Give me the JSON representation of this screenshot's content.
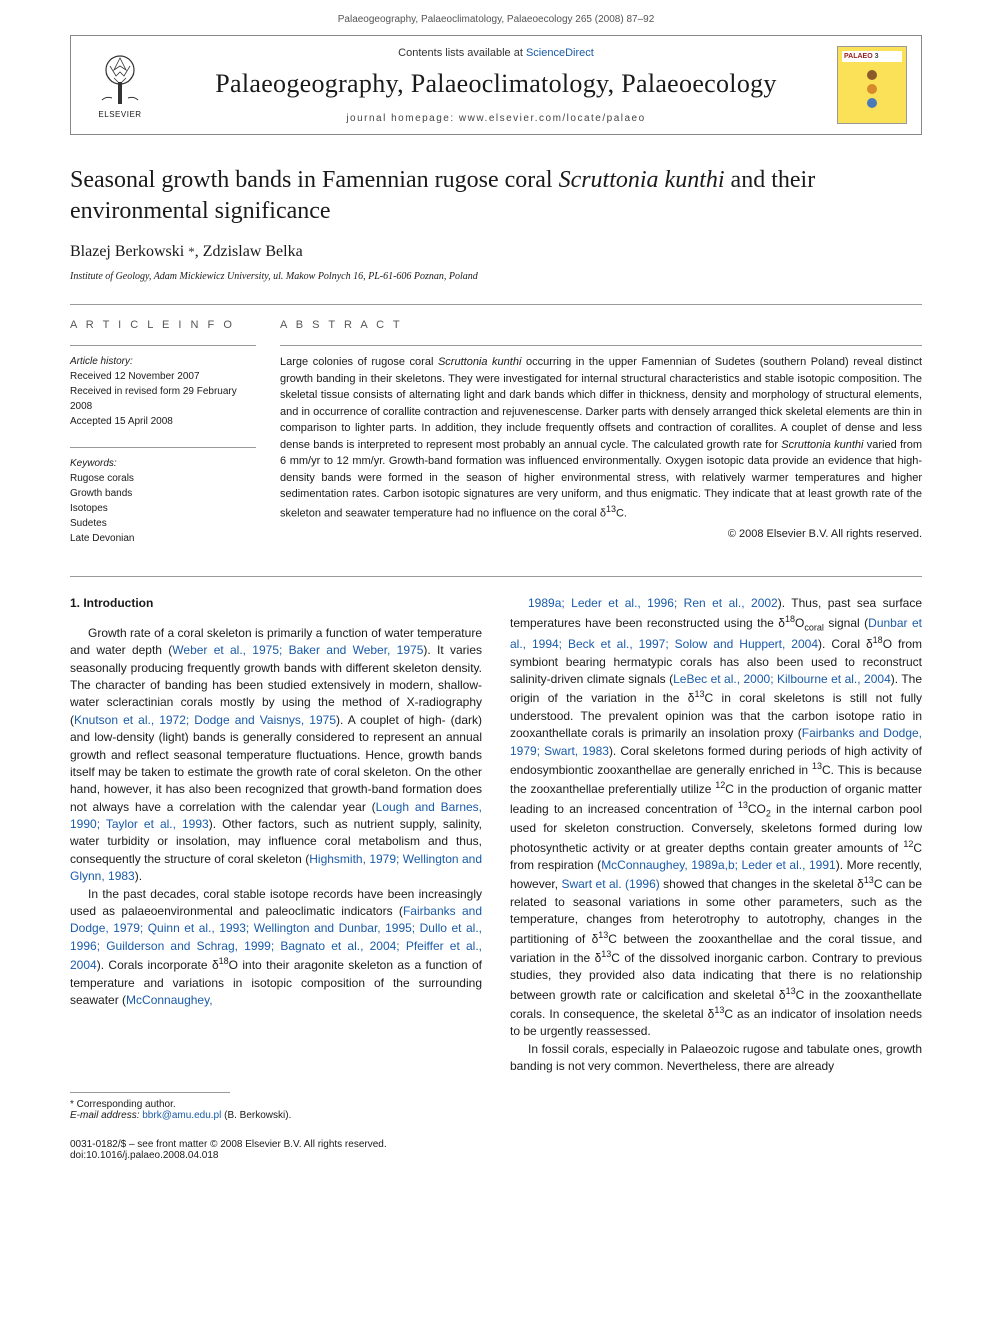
{
  "header_citation": "Palaeogeography, Palaeoclimatology, Palaeoecology 265 (2008) 87–92",
  "journal_box": {
    "contents_prefix": "Contents lists available at ",
    "contents_link": "ScienceDirect",
    "journal_title": "Palaeogeography, Palaeoclimatology, Palaeoecology",
    "homepage": "journal homepage: www.elsevier.com/locate/palaeo",
    "elsevier_label": "ELSEVIER",
    "palaeo_label": "PALAEO",
    "palaeo_label_suffix": "3"
  },
  "title_pre": "Seasonal growth bands in Famennian rugose coral ",
  "title_italic": "Scruttonia kunthi",
  "title_post": " and their environmental significance",
  "authors": "Blazej Berkowski ",
  "authors2": ", Zdzislaw Belka",
  "star": "*",
  "affiliation": "Institute of Geology, Adam Mickiewicz University, ul. Makow Polnych 16, PL-61-606 Poznan, Poland",
  "labels": {
    "article_info": "A R T I C L E   I N F O",
    "abstract": "A B S T R A C T"
  },
  "article_history_label": "Article history:",
  "history": {
    "received": "Received 12 November 2007",
    "revised": "Received in revised form 29 February 2008",
    "accepted": "Accepted 15 April 2008"
  },
  "keywords_label": "Keywords:",
  "keywords": [
    "Rugose corals",
    "Growth bands",
    "Isotopes",
    "Sudetes",
    "Late Devonian"
  ],
  "abstract_parts": [
    {
      "t": "Large colonies of rugose coral "
    },
    {
      "t": "Scruttonia kunthi",
      "i": true
    },
    {
      "t": " occurring in the upper Famennian of Sudetes (southern Poland) reveal distinct growth banding in their skeletons. They were investigated for internal structural characteristics and stable isotopic composition. The skeletal tissue consists of alternating light and dark bands which differ in thickness, density and morphology of structural elements, and in occurrence of corallite contraction and rejuvenescense. Darker parts with densely arranged thick skeletal elements are thin in comparison to lighter parts. In addition, they include frequently offsets and contraction of corallites. A couplet of dense and less dense bands is interpreted to represent most probably an annual cycle. The calculated growth rate for "
    },
    {
      "t": "Scruttonia kunthi",
      "i": true
    },
    {
      "t": " varied from 6 mm/yr to 12 mm/yr. Growth-band formation was influenced environmentally. Oxygen isotopic data provide an evidence that high-density bands were formed in the season of higher environmental stress, with relatively warmer temperatures and higher sedimentation rates. Carbon isotopic signatures are very uniform, and thus enigmatic. They indicate that at least growth rate of the skeleton and seawater temperature had no influence on the coral δ"
    },
    {
      "t": "13",
      "sup": true
    },
    {
      "t": "C."
    }
  ],
  "copyright": "© 2008 Elsevier B.V. All rights reserved.",
  "intro_heading": "1. Introduction",
  "col1_paras": [
    "Growth rate of a coral skeleton is primarily a function of water temperature and water depth (<span class=\"ref\">Weber et al., 1975; Baker and Weber, 1975</span>). It varies seasonally producing frequently growth bands with different skeleton density. The character of banding has been studied extensively in modern, shallow-water scleractinian corals mostly by using the method of X-radiography (<span class=\"ref\">Knutson et al., 1972; Dodge and Vaisnys, 1975</span>). A couplet of high- (dark) and low-density (light) bands is generally considered to represent an annual growth and reflect seasonal temperature fluctuations. Hence, growth bands itself may be taken to estimate the growth rate of coral skeleton. On the other hand, however, it has also been recognized that growth-band formation does not always have a correlation with the calendar year (<span class=\"ref\">Lough and Barnes, 1990; Taylor et al., 1993</span>). Other factors, such as nutrient supply, salinity, water turbidity or insolation, may influence coral metabolism and thus, consequently the structure of coral skeleton (<span class=\"ref\">Highsmith, 1979; Wellington and Glynn, 1983</span>).",
    "In the past decades, coral stable isotope records have been increasingly used as palaeoenvironmental and paleoclimatic indicators (<span class=\"ref\">Fairbanks and Dodge, 1979; Quinn et al., 1993; Wellington and Dunbar, 1995; Dullo et al., 1996; Guilderson and Schrag, 1999; Bagnato et al., 2004; Pfeiffer et al., 2004</span>). Corals incorporate δ<span class=\"sup\">18</span>O into their aragonite skeleton as a function of temperature and variations in isotopic composition of the surrounding seawater (<span class=\"ref\">McConnaughey,</span>"
  ],
  "col2_paras": [
    "<span class=\"ref\">1989a; Leder et al., 1996; Ren et al., 2002</span>). Thus, past sea surface temperatures have been reconstructed using the δ<span class=\"sup\">18</span>O<sub style=\"font-size:9px\">coral</sub> signal (<span class=\"ref\">Dunbar et al., 1994; Beck et al., 1997; Solow and Huppert, 2004</span>). Coral δ<span class=\"sup\">18</span>O from symbiont bearing hermatypic corals has also been used to reconstruct salinity-driven climate signals (<span class=\"ref\">LeBec et al., 2000; Kilbourne et al., 2004</span>). The origin of the variation in the δ<span class=\"sup\">13</span>C in coral skeletons is still not fully understood. The prevalent opinion was that the carbon isotope ratio in zooxanthellate corals is primarily an insolation proxy (<span class=\"ref\">Fairbanks and Dodge, 1979; Swart, 1983</span>). Coral skeletons formed during periods of high activity of endosymbiontic zooxanthellae are generally enriched in <span class=\"sup\">13</span>C. This is because the zooxanthellae preferentially utilize <span class=\"sup\">12</span>C in the production of organic matter leading to an increased concentration of <span class=\"sup\">13</span>CO<sub style=\"font-size:9px\">2</sub> in the internal carbon pool used for skeleton construction. Conversely, skeletons formed during low photosynthetic activity or at greater depths contain greater amounts of <span class=\"sup\">12</span>C from respiration (<span class=\"ref\">McConnaughey, 1989a,b; Leder et al., 1991</span>). More recently, however, <span class=\"ref\">Swart et al. (1996)</span> showed that changes in the skeletal δ<span class=\"sup\">13</span>C can be related to seasonal variations in some other parameters, such as the temperature, changes from heterotrophy to autotrophy, changes in the partitioning of δ<span class=\"sup\">13</span>C between the zooxanthellae and the coral tissue, and variation in the δ<span class=\"sup\">13</span>C of the dissolved inorganic carbon. Contrary to previous studies, they provided also data indicating that there is no relationship between growth rate or calcification and skeletal δ<span class=\"sup\">13</span>C in the zooxanthellate corals. In consequence, the skeletal δ<span class=\"sup\">13</span>C as an indicator of insolation needs to be urgently reassessed.",
    "In fossil corals, especially in Palaeozoic rugose and tabulate ones, growth banding is not very common. Nevertheless, there are already"
  ],
  "footer": {
    "corresponding": "* Corresponding author.",
    "email_italic": "E-mail address:",
    "email_link": "bbrk@amu.edu.pl",
    "email_paren": "(B. Berkowski).",
    "issn": "0031-0182/$ – see front matter © 2008 Elsevier B.V. All rights reserved.",
    "doi": "doi:10.1016/j.palaeo.2008.04.018"
  },
  "colors": {
    "link": "#1a5ba8",
    "rule": "#999",
    "palaeo_bg": "#fae158",
    "palaeo_text": "#9c2020"
  }
}
